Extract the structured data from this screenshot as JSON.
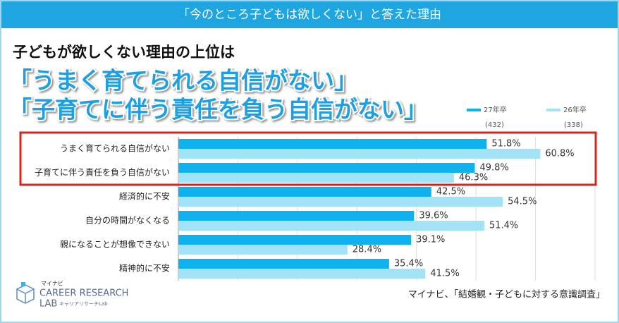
{
  "chart_data": {
    "type": "bar",
    "orientation": "horizontal",
    "banner": "「今のところ子どもは欲しくない」と答えた理由",
    "title": "子どもが欲しくない理由の上位は",
    "headlines": [
      "「うまく育てられる自信がない」",
      "「子育てに伴う責任を負う自信がない」"
    ],
    "categories": [
      "うまく育てられる自信がない",
      "子育てに伴う責任を負う自信がない",
      "経済的に不安",
      "自分の時間がなくなる",
      "親になることが想像できない",
      "精神的に不安"
    ],
    "series": [
      {
        "name": "27年卒",
        "sample": "(432)",
        "color": "#0fb2ee",
        "values": [
          51.8,
          49.8,
          42.5,
          39.6,
          39.1,
          35.4
        ],
        "value_labels": [
          "51.8%",
          "49.8%",
          "42.5%",
          "39.6%",
          "39.1%",
          "35.4%"
        ]
      },
      {
        "name": "26年卒",
        "sample": "(338)",
        "color": "#a3e3f8",
        "values": [
          60.8,
          46.3,
          54.5,
          51.4,
          28.4,
          41.5
        ],
        "value_labels": [
          "60.8%",
          "46.3%",
          "54.5%",
          "51.4%",
          "28.4%",
          "41.5%"
        ]
      }
    ],
    "xlim": [
      0,
      70
    ],
    "xticks": [
      0,
      10,
      20,
      30,
      40,
      50,
      60,
      70
    ],
    "grid": true,
    "source": "マイナビ、「結婚観・子どもに対する意識調査」",
    "logo": {
      "brand": "マイナビ",
      "line1": "CAREER RESEARCH",
      "line2": "LAB",
      "kana": "キャリアリサーチLab"
    }
  }
}
